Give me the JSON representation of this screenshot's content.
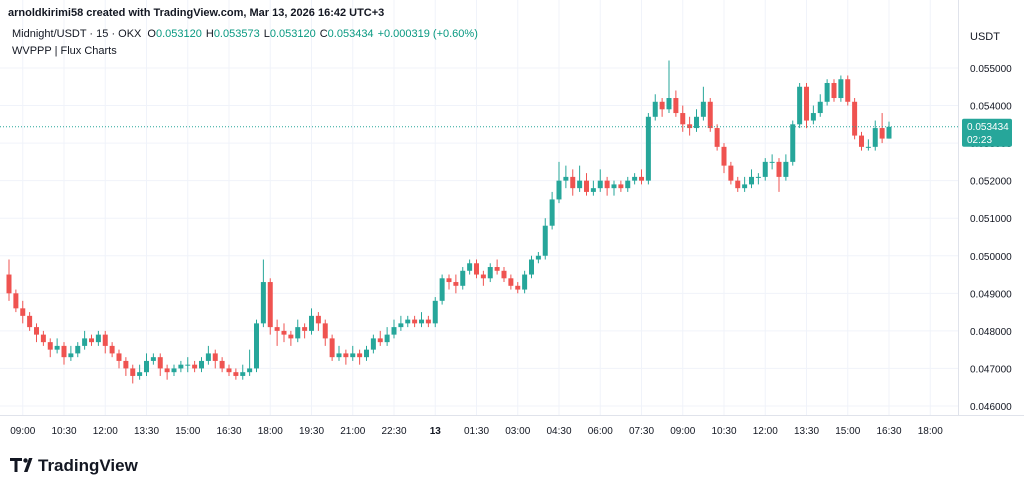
{
  "header": {
    "credit": "arnoldkirimi58 created with TradingView.com, Mar 13, 2026 16:42 UTC+3",
    "brand": "TradingView"
  },
  "chart_data": {
    "type": "candlestick",
    "legend": {
      "symbol": "Midnight/USDT · 15 · OKX",
      "fields": [
        {
          "label": "O",
          "value": "0.053120"
        },
        {
          "label": "H",
          "value": "0.053573"
        },
        {
          "label": "L",
          "value": "0.053120"
        },
        {
          "label": "C",
          "value": "0.053434"
        }
      ],
      "change": "+0.000319 (+0.60%)"
    },
    "indicator": "WVPPP | Flux Charts",
    "y_axis_unit": "USDT",
    "countdown": "02:23",
    "up_color": "#26a69a",
    "down_color": "#ef5350",
    "legend_color": "#089981",
    "grid": true,
    "ylim": [
      0.04576,
      0.05681
    ],
    "yticks": [
      {
        "value": 0.046,
        "label": "0.046000"
      },
      {
        "value": 0.047,
        "label": "0.047000"
      },
      {
        "value": 0.048,
        "label": "0.048000"
      },
      {
        "value": 0.049,
        "label": "0.049000"
      },
      {
        "value": 0.05,
        "label": "0.050000"
      },
      {
        "value": 0.051,
        "label": "0.051000"
      },
      {
        "value": 0.052,
        "label": "0.052000"
      },
      {
        "value": 0.053,
        "label": "0.053000"
      },
      {
        "value": 0.054,
        "label": "0.054000"
      },
      {
        "value": 0.055,
        "label": "0.055000"
      }
    ],
    "xticks": [
      {
        "value": 2,
        "label": "09:00"
      },
      {
        "value": 8,
        "label": "10:30"
      },
      {
        "value": 14,
        "label": "12:00"
      },
      {
        "value": 20,
        "label": "13:30"
      },
      {
        "value": 26,
        "label": "15:00"
      },
      {
        "value": 32,
        "label": "16:30"
      },
      {
        "value": 38,
        "label": "18:00"
      },
      {
        "value": 44,
        "label": "19:30"
      },
      {
        "value": 50,
        "label": "21:00"
      },
      {
        "value": 56,
        "label": "22:30"
      },
      {
        "value": 62,
        "label": "13"
      },
      {
        "value": 68,
        "label": "01:30"
      },
      {
        "value": 74,
        "label": "03:00"
      },
      {
        "value": 80,
        "label": "04:30"
      },
      {
        "value": 86,
        "label": "06:00"
      },
      {
        "value": 92,
        "label": "07:30"
      },
      {
        "value": 98,
        "label": "09:00"
      },
      {
        "value": 104,
        "label": "10:30"
      },
      {
        "value": 110,
        "label": "12:00"
      },
      {
        "value": 116,
        "label": "13:30"
      },
      {
        "value": 122,
        "label": "15:00"
      },
      {
        "value": 128,
        "label": "16:30"
      },
      {
        "value": 134,
        "label": "18:00"
      }
    ],
    "open": [
      0.0495,
      0.049,
      0.0486,
      0.0484,
      0.0481,
      0.0479,
      0.0477,
      0.0475,
      0.0476,
      0.0473,
      0.0474,
      0.0476,
      0.0478,
      0.0477,
      0.0479,
      0.0476,
      0.0474,
      0.0472,
      0.047,
      0.0468,
      0.0469,
      0.0472,
      0.0473,
      0.047,
      0.0469,
      0.047,
      0.0471,
      0.0471,
      0.047,
      0.0472,
      0.0474,
      0.0472,
      0.047,
      0.0469,
      0.0468,
      0.0469,
      0.047,
      0.0482,
      0.0493,
      0.0481,
      0.048,
      0.0479,
      0.0478,
      0.0481,
      0.048,
      0.0484,
      0.0482,
      0.0478,
      0.0473,
      0.0474,
      0.0473,
      0.0474,
      0.0473,
      0.0475,
      0.0478,
      0.0477,
      0.0479,
      0.0481,
      0.0482,
      0.0483,
      0.0482,
      0.0483,
      0.0482,
      0.0488,
      0.0494,
      0.0493,
      0.0492,
      0.0496,
      0.0498,
      0.0495,
      0.0494,
      0.0497,
      0.0496,
      0.0494,
      0.0492,
      0.0491,
      0.0495,
      0.0499,
      0.05,
      0.0508,
      0.0515,
      0.052,
      0.0521,
      0.0518,
      0.052,
      0.0517,
      0.0518,
      0.052,
      0.0518,
      0.0519,
      0.0518,
      0.052,
      0.0521,
      0.052,
      0.0537,
      0.0541,
      0.0539,
      0.0542,
      0.0538,
      0.0535,
      0.0534,
      0.0537,
      0.0541,
      0.0534,
      0.0529,
      0.0524,
      0.052,
      0.0518,
      0.0519,
      0.0521,
      0.0521,
      0.0525,
      0.0525,
      0.0521,
      0.0525,
      0.0535,
      0.0545,
      0.0536,
      0.0538,
      0.0541,
      0.0546,
      0.0542,
      0.0547,
      0.0541,
      0.0532,
      0.0529,
      0.0529,
      0.0534,
      0.05312
    ],
    "high": [
      0.0499,
      0.0491,
      0.0488,
      0.0485,
      0.0482,
      0.048,
      0.0478,
      0.0478,
      0.0477,
      0.0476,
      0.0477,
      0.048,
      0.0479,
      0.048,
      0.048,
      0.0477,
      0.0475,
      0.0473,
      0.0471,
      0.0471,
      0.0474,
      0.0474,
      0.0474,
      0.0471,
      0.0471,
      0.0472,
      0.0473,
      0.0472,
      0.0473,
      0.0476,
      0.0475,
      0.0473,
      0.0471,
      0.047,
      0.0471,
      0.0475,
      0.0483,
      0.0499,
      0.0494,
      0.0483,
      0.0482,
      0.048,
      0.0483,
      0.0482,
      0.0486,
      0.0485,
      0.0483,
      0.0479,
      0.0476,
      0.0475,
      0.0476,
      0.0475,
      0.0476,
      0.0479,
      0.048,
      0.0481,
      0.0483,
      0.0484,
      0.0484,
      0.0484,
      0.0485,
      0.0484,
      0.0489,
      0.0495,
      0.0495,
      0.0495,
      0.0497,
      0.0499,
      0.0499,
      0.0496,
      0.0498,
      0.0499,
      0.0497,
      0.0495,
      0.0493,
      0.0496,
      0.05,
      0.0501,
      0.051,
      0.0517,
      0.0525,
      0.0524,
      0.0523,
      0.0524,
      0.0522,
      0.052,
      0.0523,
      0.0521,
      0.052,
      0.052,
      0.0521,
      0.0522,
      0.0523,
      0.0538,
      0.0543,
      0.0542,
      0.0552,
      0.0544,
      0.054,
      0.0537,
      0.0539,
      0.0545,
      0.0542,
      0.0535,
      0.053,
      0.0525,
      0.0521,
      0.0521,
      0.0523,
      0.0522,
      0.0526,
      0.0527,
      0.0526,
      0.0527,
      0.0536,
      0.0546,
      0.0546,
      0.054,
      0.0543,
      0.0547,
      0.0547,
      0.0548,
      0.0548,
      0.0542,
      0.0533,
      0.0531,
      0.0536,
      0.0538,
      0.053573
    ],
    "low": [
      0.0488,
      0.0485,
      0.0482,
      0.048,
      0.0477,
      0.0476,
      0.0473,
      0.0474,
      0.0471,
      0.0472,
      0.0473,
      0.0475,
      0.0476,
      0.0476,
      0.0474,
      0.0473,
      0.047,
      0.0468,
      0.0466,
      0.0467,
      0.0468,
      0.0471,
      0.0468,
      0.0467,
      0.0468,
      0.0469,
      0.0469,
      0.0469,
      0.0469,
      0.0471,
      0.047,
      0.0469,
      0.0468,
      0.0467,
      0.0467,
      0.0468,
      0.0469,
      0.0481,
      0.0479,
      0.0476,
      0.0477,
      0.0476,
      0.0477,
      0.0478,
      0.0479,
      0.048,
      0.0476,
      0.0472,
      0.0472,
      0.0471,
      0.0472,
      0.0471,
      0.0472,
      0.0474,
      0.0476,
      0.0476,
      0.0478,
      0.048,
      0.0481,
      0.0481,
      0.0481,
      0.0481,
      0.0481,
      0.0487,
      0.0491,
      0.049,
      0.0491,
      0.0495,
      0.0494,
      0.0492,
      0.0493,
      0.0495,
      0.0493,
      0.0491,
      0.049,
      0.049,
      0.0494,
      0.0498,
      0.0499,
      0.0507,
      0.0514,
      0.0518,
      0.0516,
      0.0517,
      0.0516,
      0.0516,
      0.0517,
      0.0516,
      0.0516,
      0.0517,
      0.0517,
      0.0519,
      0.0519,
      0.0519,
      0.0536,
      0.0537,
      0.0538,
      0.0537,
      0.0533,
      0.0532,
      0.0533,
      0.0536,
      0.0533,
      0.0528,
      0.0522,
      0.0519,
      0.0517,
      0.0517,
      0.0518,
      0.0519,
      0.052,
      0.0523,
      0.0517,
      0.052,
      0.0524,
      0.0534,
      0.0534,
      0.0535,
      0.0537,
      0.054,
      0.0541,
      0.0541,
      0.054,
      0.0531,
      0.0528,
      0.0528,
      0.0528,
      0.053,
      0.05312
    ],
    "close": [
      0.049,
      0.0486,
      0.0484,
      0.0481,
      0.0479,
      0.0477,
      0.0475,
      0.0476,
      0.0473,
      0.0474,
      0.0476,
      0.0478,
      0.0477,
      0.0479,
      0.0476,
      0.0474,
      0.0472,
      0.047,
      0.0468,
      0.0469,
      0.0472,
      0.0473,
      0.047,
      0.0469,
      0.047,
      0.0471,
      0.0471,
      0.047,
      0.0472,
      0.0474,
      0.0472,
      0.047,
      0.0469,
      0.0468,
      0.0469,
      0.047,
      0.0482,
      0.0493,
      0.0481,
      0.048,
      0.0479,
      0.0478,
      0.0481,
      0.048,
      0.0484,
      0.0482,
      0.0478,
      0.0473,
      0.0474,
      0.0473,
      0.0474,
      0.0473,
      0.0475,
      0.0478,
      0.0477,
      0.0479,
      0.0481,
      0.0482,
      0.0483,
      0.0482,
      0.0483,
      0.0482,
      0.0488,
      0.0494,
      0.0493,
      0.0492,
      0.0496,
      0.0498,
      0.0495,
      0.0494,
      0.0497,
      0.0496,
      0.0494,
      0.0492,
      0.0491,
      0.0495,
      0.0499,
      0.05,
      0.0508,
      0.0515,
      0.052,
      0.0521,
      0.0518,
      0.052,
      0.0517,
      0.0518,
      0.052,
      0.0518,
      0.0519,
      0.0518,
      0.052,
      0.0521,
      0.052,
      0.0537,
      0.0541,
      0.0539,
      0.0542,
      0.0538,
      0.0535,
      0.0534,
      0.0537,
      0.0541,
      0.0534,
      0.0529,
      0.0524,
      0.052,
      0.0518,
      0.0519,
      0.0521,
      0.0521,
      0.0525,
      0.0525,
      0.0521,
      0.0525,
      0.0535,
      0.0545,
      0.0536,
      0.0538,
      0.0541,
      0.0546,
      0.0542,
      0.0547,
      0.0541,
      0.0532,
      0.0529,
      0.0529,
      0.0534,
      0.05312,
      0.053434
    ]
  }
}
